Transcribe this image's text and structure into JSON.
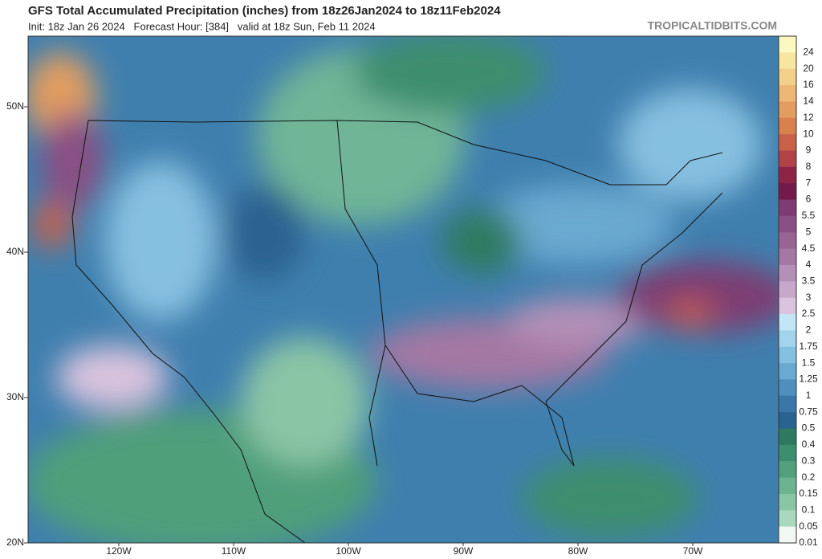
{
  "header": {
    "title": "GFS Total Accumulated Precipitation (inches) from 18z26Jan2024 to 18z11Feb2024",
    "subtitle": "Init: 18z Jan 26 2024   Forecast Hour: [384]   valid at 18z Sun, Feb 11 2024",
    "source": "TROPICALTIDBITS.COM"
  },
  "map": {
    "lat_labels": [
      "50N",
      "40N",
      "30N",
      "20N"
    ],
    "lon_labels": [
      "120W",
      "110W",
      "100W",
      "90W",
      "80W",
      "70W"
    ]
  },
  "colorbar": {
    "levels": [
      {
        "label": "24",
        "color": "#fdf8c0"
      },
      {
        "label": "20",
        "color": "#f8e6a0"
      },
      {
        "label": "16",
        "color": "#f2d08a"
      },
      {
        "label": "14",
        "color": "#edb873"
      },
      {
        "label": "12",
        "color": "#e39d5e"
      },
      {
        "label": "10",
        "color": "#d9804e"
      },
      {
        "label": "9",
        "color": "#c9604a"
      },
      {
        "label": "8",
        "color": "#b04248"
      },
      {
        "label": "7",
        "color": "#8e2445"
      },
      {
        "label": "6",
        "color": "#731a4b"
      },
      {
        "label": "5.5",
        "color": "#7e3c72"
      },
      {
        "label": "5",
        "color": "#8a5083"
      },
      {
        "label": "4.5",
        "color": "#976493"
      },
      {
        "label": "4",
        "color": "#a478a3"
      },
      {
        "label": "3.5",
        "color": "#b490b7"
      },
      {
        "label": "3",
        "color": "#c6a8cb"
      },
      {
        "label": "2.5",
        "color": "#d9c3de"
      },
      {
        "label": "2",
        "color": "#c3e6f5"
      },
      {
        "label": "1.75",
        "color": "#a4d4ec"
      },
      {
        "label": "1.5",
        "color": "#86c0e0"
      },
      {
        "label": "1.25",
        "color": "#6aa9d0"
      },
      {
        "label": "1",
        "color": "#4f8fbe"
      },
      {
        "label": "0.75",
        "color": "#3a77a8"
      },
      {
        "label": "0.5",
        "color": "#2a6290"
      },
      {
        "label": "0.4",
        "color": "#2e7a60"
      },
      {
        "label": "0.3",
        "color": "#3d8e6e"
      },
      {
        "label": "0.2",
        "color": "#52a07e"
      },
      {
        "label": "0.15",
        "color": "#6db391"
      },
      {
        "label": "0.1",
        "color": "#8ac5a6"
      },
      {
        "label": "0.05",
        "color": "#a9d8be"
      },
      {
        "label": "0.01",
        "color": "#f2f8f4"
      }
    ]
  }
}
